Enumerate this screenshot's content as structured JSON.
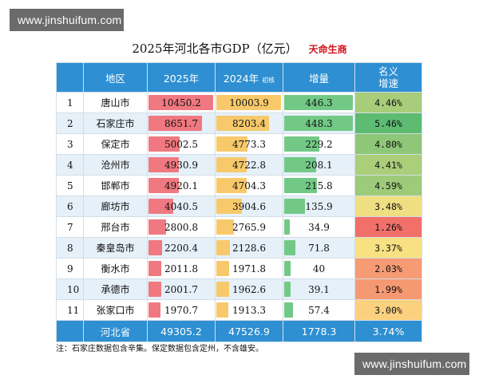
{
  "watermarks": {
    "top": "www.jinshuifum.com",
    "bottom": "www.jinshuifum.com"
  },
  "title": "2025年河北各市GDP（亿元）",
  "source": "天命生商",
  "header": {
    "rank": "",
    "region": "地区",
    "gdp2025": "2025年",
    "gdp2024": "2024年",
    "gdp2024_tag": "初核",
    "increase": "增量",
    "growth_line1": "名义",
    "growth_line2": "增速"
  },
  "colors": {
    "header_bg": "#2e8fd2",
    "bar2025": "#f07880",
    "bar2024": "#f7c96b",
    "bar_increase": "#72c986",
    "growth_low": "#f1706a",
    "growth_mid": "#fde283",
    "growth_high": "#5dbb72"
  },
  "chart_data": {
    "type": "table",
    "columns": [
      "",
      "地区",
      "2025年",
      "2024年 初核",
      "增量",
      "名义增速"
    ],
    "rows": [
      {
        "rank": "1",
        "region": "唐山市",
        "gdp2025": 10450.2,
        "gdp2024": 10003.9,
        "increase": 446.3,
        "growth": 4.46
      },
      {
        "rank": "2",
        "region": "石家庄市",
        "gdp2025": 8651.7,
        "gdp2024": 8203.4,
        "increase": 448.3,
        "growth": 5.46
      },
      {
        "rank": "3",
        "region": "保定市",
        "gdp2025": 5002.5,
        "gdp2024": 4773.3,
        "increase": 229.2,
        "growth": 4.8
      },
      {
        "rank": "4",
        "region": "沧州市",
        "gdp2025": 4930.9,
        "gdp2024": 4722.8,
        "increase": 208.1,
        "growth": 4.41
      },
      {
        "rank": "5",
        "region": "邯郸市",
        "gdp2025": 4920.1,
        "gdp2024": 4704.3,
        "increase": 215.8,
        "growth": 4.59
      },
      {
        "rank": "6",
        "region": "廊坊市",
        "gdp2025": 4040.5,
        "gdp2024": 3904.6,
        "increase": 135.9,
        "growth": 3.48
      },
      {
        "rank": "7",
        "region": "邢台市",
        "gdp2025": 2800.8,
        "gdp2024": 2765.9,
        "increase": 34.9,
        "growth": 1.26
      },
      {
        "rank": "8",
        "region": "秦皇岛市",
        "gdp2025": 2200.4,
        "gdp2024": 2128.6,
        "increase": 71.8,
        "growth": 3.37
      },
      {
        "rank": "9",
        "region": "衡水市",
        "gdp2025": 2011.8,
        "gdp2024": 1971.8,
        "increase": 40,
        "growth": 2.03
      },
      {
        "rank": "10",
        "region": "承德市",
        "gdp2025": 2001.7,
        "gdp2024": 1962.6,
        "increase": 39.1,
        "growth": 1.99
      },
      {
        "rank": "11",
        "region": "张家口市",
        "gdp2025": 1970.7,
        "gdp2024": 1913.3,
        "increase": 57.4,
        "growth": 3.0
      }
    ],
    "total": {
      "region": "河北省",
      "gdp2025": 49305.2,
      "gdp2024": 47526.9,
      "increase": 1778.3,
      "growth": 3.74
    }
  },
  "note": "注：石家庄数据包含辛集。保定数据包含定州，不含雄安。"
}
